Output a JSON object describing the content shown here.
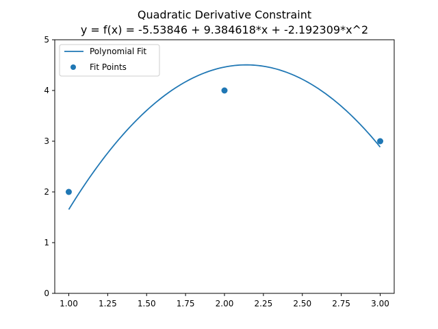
{
  "chart_data": {
    "type": "line",
    "title": "Quadratic Derivative Constraint",
    "subtitle": "y = f(x) = -5.53846 + 9.384618*x + -2.192309*x^2",
    "xlabel": "",
    "ylabel": "",
    "xlim": [
      0.91,
      3.09
    ],
    "ylim": [
      0,
      5
    ],
    "xticks": [
      1.0,
      1.25,
      1.5,
      1.75,
      2.0,
      2.25,
      2.5,
      2.75,
      3.0
    ],
    "xtick_labels": [
      "1.00",
      "1.25",
      "1.50",
      "1.75",
      "2.00",
      "2.25",
      "2.50",
      "2.75",
      "3.00"
    ],
    "yticks": [
      0,
      1,
      2,
      3,
      4,
      5
    ],
    "ytick_labels": [
      "0",
      "1",
      "2",
      "3",
      "4",
      "5"
    ],
    "grid": false,
    "legend_position": "top-left",
    "line_color": "#1f77b4",
    "series": [
      {
        "name": "Polynomial Fit",
        "kind": "line",
        "coefficients": [
          -5.53846,
          9.384618,
          -2.192309
        ],
        "x_range": [
          1.0,
          3.0
        ]
      },
      {
        "name": "Fit Points",
        "kind": "scatter",
        "x": [
          1.0,
          2.0,
          3.0
        ],
        "y": [
          2,
          4,
          3
        ]
      }
    ]
  }
}
